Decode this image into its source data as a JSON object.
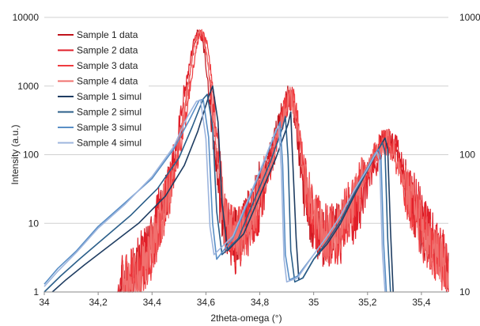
{
  "chart_data": {
    "type": "line",
    "xlabel": "2theta-omega (°)",
    "ylabel": "Intensity (a.u.)",
    "x_ticks": [
      "34",
      "34,2",
      "34,4",
      "34,6",
      "34,8",
      "35",
      "35,2",
      "35,4"
    ],
    "x_tick_values": [
      34.0,
      34.2,
      34.4,
      34.6,
      34.8,
      35.0,
      35.2,
      35.4
    ],
    "xlim": [
      34.0,
      35.5
    ],
    "y_scale": "log",
    "ylim": [
      1,
      10000
    ],
    "y_ticks": [
      "1",
      "10",
      "100",
      "1000",
      "10000"
    ],
    "y2_ticks": [
      "10",
      "100",
      "1000"
    ],
    "y2_tick_values": [
      10,
      100,
      1000
    ],
    "y2lim": [
      10,
      1000
    ],
    "grid": "horizontal",
    "legend_position": "top-left",
    "series": [
      {
        "name": "Sample 1 data",
        "color": "#c0141c",
        "kind": "data",
        "noise": 0.18,
        "seed": 11,
        "x": [
          34.28,
          34.35,
          34.42,
          34.47,
          34.51,
          34.54,
          34.56,
          34.57,
          34.585,
          34.6,
          34.62,
          34.64,
          34.66,
          34.69,
          34.73,
          34.78,
          34.83,
          34.87,
          34.895,
          34.91,
          34.925,
          34.94,
          34.96,
          34.98,
          35.0,
          35.04,
          35.08,
          35.12,
          35.16,
          35.2,
          35.23,
          35.26,
          35.28,
          35.3,
          35.33,
          35.36,
          35.4,
          35.45,
          35.5
        ],
        "y": [
          1.2,
          2.0,
          8,
          40,
          250,
          1500,
          4500,
          6300,
          5800,
          2000,
          300,
          60,
          12,
          6,
          8,
          20,
          80,
          300,
          600,
          750,
          500,
          150,
          35,
          15,
          8,
          6,
          7,
          12,
          25,
          55,
          100,
          150,
          170,
          120,
          50,
          20,
          8,
          4,
          2.5
        ]
      },
      {
        "name": "Sample 2 data",
        "color": "#e01e28",
        "kind": "data",
        "noise": 0.22,
        "seed": 23,
        "x": [
          34.27,
          34.34,
          34.41,
          34.46,
          34.5,
          34.53,
          34.555,
          34.57,
          34.59,
          34.61,
          34.63,
          34.65,
          34.67,
          34.7,
          34.74,
          34.79,
          34.84,
          34.88,
          34.9,
          34.915,
          34.93,
          34.95,
          34.97,
          34.99,
          35.02,
          35.06,
          35.1,
          35.14,
          35.18,
          35.22,
          35.25,
          35.27,
          35.29,
          35.31,
          35.34,
          35.38,
          35.42,
          35.47,
          35.5
        ],
        "y": [
          1.1,
          1.8,
          7,
          35,
          220,
          1300,
          4200,
          6000,
          5200,
          1700,
          250,
          50,
          10,
          5,
          7,
          18,
          75,
          280,
          580,
          700,
          450,
          130,
          30,
          13,
          7,
          6,
          7,
          13,
          28,
          60,
          110,
          160,
          160,
          110,
          45,
          18,
          7,
          3.5,
          2.2
        ]
      },
      {
        "name": "Sample 3 data",
        "color": "#ef3b3f",
        "kind": "data",
        "noise": 0.2,
        "seed": 37,
        "x": [
          34.3,
          34.37,
          34.43,
          34.48,
          34.52,
          34.55,
          34.57,
          34.58,
          34.6,
          34.62,
          34.64,
          34.66,
          34.68,
          34.71,
          34.75,
          34.8,
          34.85,
          34.88,
          34.905,
          34.92,
          34.935,
          34.955,
          34.975,
          35.0,
          35.04,
          35.08,
          35.12,
          35.16,
          35.2,
          35.23,
          35.26,
          35.28,
          35.3,
          35.32,
          35.35,
          35.39,
          35.44,
          35.5
        ],
        "y": [
          1.3,
          2.2,
          9,
          45,
          270,
          1600,
          4800,
          6500,
          4800,
          1500,
          220,
          45,
          10,
          6,
          9,
          22,
          90,
          320,
          640,
          720,
          430,
          120,
          28,
          12,
          7,
          7,
          13,
          28,
          60,
          110,
          160,
          150,
          100,
          55,
          22,
          9,
          4,
          2.3
        ]
      },
      {
        "name": "Sample 4 data",
        "color": "#f0706e",
        "kind": "data",
        "noise": 0.18,
        "seed": 53,
        "x": [
          34.29,
          34.36,
          34.42,
          34.47,
          34.51,
          34.54,
          34.56,
          34.575,
          34.59,
          34.61,
          34.63,
          34.65,
          34.67,
          34.7,
          34.74,
          34.79,
          34.84,
          34.88,
          34.9,
          34.915,
          34.93,
          34.95,
          34.97,
          35.0,
          35.04,
          35.08,
          35.12,
          35.16,
          35.2,
          35.23,
          35.26,
          35.28,
          35.3,
          35.33,
          35.37,
          35.41,
          35.46,
          35.5
        ],
        "y": [
          1.2,
          2.0,
          8,
          38,
          240,
          1400,
          4400,
          6100,
          5400,
          1800,
          280,
          55,
          11,
          6,
          8,
          19,
          78,
          290,
          600,
          680,
          440,
          125,
          30,
          13,
          7,
          6,
          12,
          26,
          58,
          105,
          150,
          160,
          115,
          48,
          19,
          8,
          3.8,
          2.4
        ]
      },
      {
        "name": "Sample 1 simul",
        "color": "#1f3d62",
        "kind": "simul",
        "noise": 0,
        "x": [
          34.03,
          34.08,
          34.15,
          34.25,
          34.35,
          34.45,
          34.52,
          34.57,
          34.61,
          34.625,
          34.645,
          34.66,
          34.68,
          34.74,
          34.8,
          34.86,
          34.905,
          34.915,
          34.92,
          34.935,
          34.945,
          34.96,
          35.0,
          35.05,
          35.1,
          35.15,
          35.2,
          35.24,
          35.265,
          35.275,
          35.285,
          35.295
        ],
        "y": [
          1,
          1.5,
          2.5,
          5,
          10,
          25,
          70,
          220,
          700,
          1000,
          300,
          20,
          4,
          7,
          25,
          90,
          280,
          420,
          130,
          6,
          1.5,
          1.6,
          3,
          5,
          10,
          25,
          60,
          120,
          175,
          120,
          8,
          1
        ]
      },
      {
        "name": "Sample 2 simul",
        "color": "#2b5f8a",
        "kind": "simul",
        "noise": 0,
        "x": [
          34.0,
          34.06,
          34.13,
          34.22,
          34.32,
          34.42,
          34.5,
          34.55,
          34.59,
          34.605,
          34.625,
          34.64,
          34.66,
          34.72,
          34.78,
          34.84,
          34.885,
          34.895,
          34.905,
          34.915,
          34.93,
          34.96,
          35.0,
          35.05,
          35.1,
          35.15,
          35.2,
          35.235,
          35.255,
          35.265,
          35.275,
          35.285
        ],
        "y": [
          1,
          1.7,
          3,
          6,
          13,
          32,
          90,
          260,
          650,
          760,
          250,
          15,
          3.5,
          6,
          22,
          80,
          250,
          360,
          90,
          4,
          1.4,
          1.6,
          3,
          5.5,
          11,
          27,
          60,
          110,
          150,
          110,
          6,
          1
        ]
      },
      {
        "name": "Sample 3 simul",
        "color": "#5a8fc6",
        "kind": "simul",
        "noise": 0,
        "x": [
          34.0,
          34.05,
          34.12,
          34.2,
          34.3,
          34.4,
          34.48,
          34.54,
          34.575,
          34.59,
          34.61,
          34.625,
          34.64,
          34.7,
          34.76,
          34.82,
          34.865,
          34.875,
          34.885,
          34.895,
          34.91,
          34.94,
          35.0,
          35.05,
          35.1,
          35.15,
          35.2,
          35.225,
          35.24,
          35.25,
          35.26,
          35.27
        ],
        "y": [
          1.3,
          2.2,
          4,
          9,
          20,
          45,
          120,
          330,
          620,
          640,
          180,
          10,
          3,
          6,
          22,
          85,
          240,
          300,
          70,
          3.5,
          1.5,
          1.7,
          3.5,
          6.5,
          13,
          30,
          65,
          100,
          120,
          90,
          5,
          1
        ]
      },
      {
        "name": "Sample 4 simul",
        "color": "#9db5de",
        "kind": "simul",
        "noise": 0,
        "x": [
          34.0,
          34.05,
          34.12,
          34.2,
          34.3,
          34.4,
          34.48,
          34.53,
          34.565,
          34.58,
          34.6,
          34.615,
          34.63,
          34.7,
          34.76,
          34.82,
          34.86,
          34.87,
          34.88,
          34.89,
          34.9,
          34.94,
          35.0,
          35.05,
          35.1,
          35.15,
          35.2,
          35.225,
          35.235,
          35.245,
          35.255,
          35.265
        ],
        "y": [
          1.2,
          2.0,
          3.8,
          8.5,
          19,
          48,
          130,
          350,
          600,
          620,
          170,
          9,
          3.5,
          6.5,
          24,
          90,
          230,
          260,
          60,
          3,
          1.4,
          1.6,
          3.5,
          6.5,
          13,
          30,
          62,
          95,
          110,
          80,
          4,
          1
        ]
      }
    ]
  }
}
